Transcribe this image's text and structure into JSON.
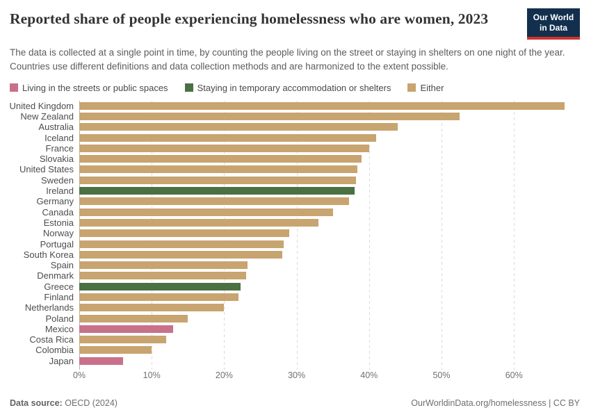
{
  "header": {
    "title": "Reported share of people experiencing homelessness who are women, 2023",
    "logo": {
      "line1": "Our World",
      "line2": "in Data",
      "bg_color": "#132F4E",
      "accent_color": "#D0342C"
    }
  },
  "subtitle": "The data is collected at a single point in time, by counting the people living on the street or staying in shelters on one night of the year. Countries use different definitions and data collection methods and are harmonized to the extent possible.",
  "legend": {
    "items": [
      {
        "key": "streets",
        "label": "Living in the streets or public spaces",
        "color": "#C9718A"
      },
      {
        "key": "shelters",
        "label": "Staying in temporary accommodation or shelters",
        "color": "#4A7044"
      },
      {
        "key": "either",
        "label": "Either",
        "color": "#C8A470"
      }
    ]
  },
  "chart_data": {
    "type": "bar",
    "orientation": "horizontal",
    "title": "Reported share of people experiencing homelessness who are women, 2023",
    "unit": "%",
    "grid": true,
    "xlim": [
      0,
      69
    ],
    "x_ticks": [
      0,
      10,
      20,
      30,
      40,
      50,
      60
    ],
    "x_tick_labels": [
      "0%",
      "10%",
      "20%",
      "30%",
      "40%",
      "50%",
      "60%"
    ],
    "categories": [
      "United Kingdom",
      "New Zealand",
      "Australia",
      "Iceland",
      "France",
      "Slovakia",
      "United States",
      "Sweden",
      "Ireland",
      "Germany",
      "Canada",
      "Estonia",
      "Norway",
      "Portugal",
      "South Korea",
      "Spain",
      "Denmark",
      "Greece",
      "Finland",
      "Netherlands",
      "Poland",
      "Mexico",
      "Costa Rica",
      "Colombia",
      "Japan"
    ],
    "values": [
      67,
      52.5,
      44,
      41,
      40,
      39,
      38.4,
      38.2,
      38,
      37.2,
      35,
      33,
      29,
      28.2,
      28,
      23.2,
      23,
      22.3,
      22,
      20,
      15,
      13,
      12,
      10,
      6
    ],
    "series_of": [
      "either",
      "either",
      "either",
      "either",
      "either",
      "either",
      "either",
      "either",
      "shelters",
      "either",
      "either",
      "either",
      "either",
      "either",
      "either",
      "either",
      "either",
      "shelters",
      "either",
      "either",
      "either",
      "streets",
      "either",
      "either",
      "streets"
    ]
  },
  "footer": {
    "source_label": "Data source:",
    "source_value": "OECD (2024)",
    "credit": "OurWorldinData.org/homelessness | CC BY"
  }
}
